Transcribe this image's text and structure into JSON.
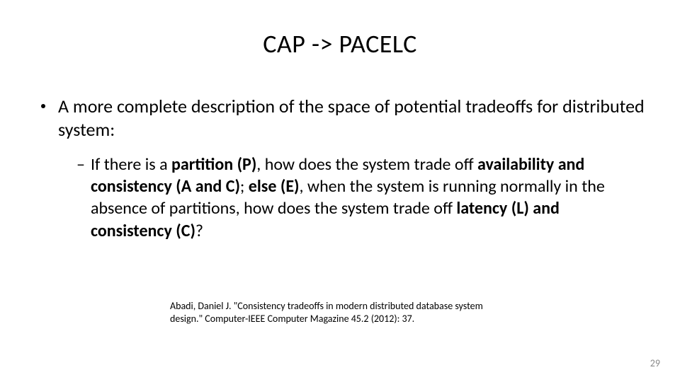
{
  "title": "CAP -> PACELC",
  "bullet_l1": "A more complete description of the space of potential tradeoffs for distributed system:",
  "bullet_l2": {
    "seg1": "If there is a ",
    "seg2": "partition (P)",
    "seg3": ", how does the system trade off ",
    "seg4": "availability and consistency (A and C)",
    "seg5": "; ",
    "seg6": "else (E)",
    "seg7": ", when the system is running normally in the absence of partitions, how does the system trade off ",
    "seg8": "latency (L) and consistency (C)",
    "seg9": "?"
  },
  "citation": {
    "line1": "Abadi, Daniel J. \"Consistency tradeoffs in modern distributed database system design.\" Computer-IEEE Computer Magazine 45.2 (2012): 37."
  },
  "page_number": "29",
  "colors": {
    "background": "#ffffff",
    "text": "#000000",
    "pagenum": "#8a8a8a"
  },
  "typography": {
    "title_fontsize": 36,
    "l1_fontsize": 26,
    "l2_fontsize": 24,
    "citation_fontsize": 14,
    "pagenum_fontsize": 14
  }
}
